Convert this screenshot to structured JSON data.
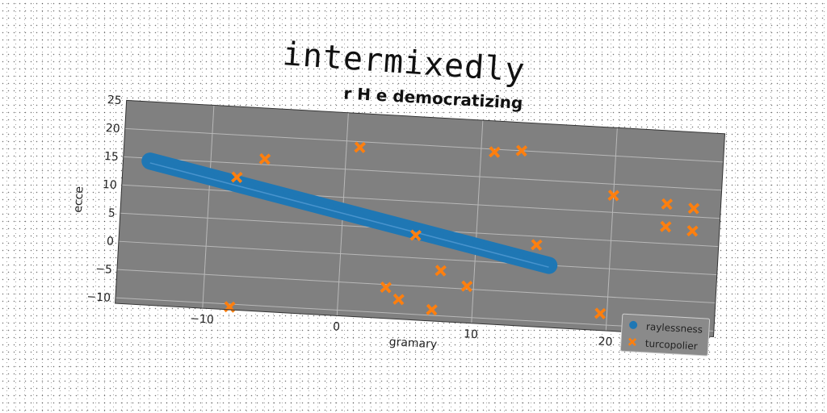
{
  "header": {
    "title": "intermixedly"
  },
  "chart_data": {
    "type": "scatter",
    "title": "r H e democratizing",
    "xlabel": "gramary",
    "ylabel": "ecce",
    "xlim": [
      -16.5,
      28
    ],
    "ylim": [
      -11,
      25
    ],
    "xticks": [
      -10,
      0,
      10,
      20
    ],
    "yticks": [
      -10,
      -5,
      0,
      5,
      10,
      15,
      20,
      25
    ],
    "grid": true,
    "legend_position": "bottom-right",
    "colors": {
      "plot_bg": "#808080",
      "raylessness": "#1f77b4",
      "turcopolier": "#ff7f0e"
    },
    "series": [
      {
        "name": "raylessness",
        "marker": "o",
        "band": {
          "x_start": -14.5,
          "y_start": 14.5,
          "x_end": 15.5,
          "y_end": 0,
          "thickness": 1.6
        }
      },
      {
        "name": "turcopolier",
        "marker": "X",
        "points": [
          [
            -8,
            12.5
          ],
          [
            -6,
            16
          ],
          [
            1,
            19
          ],
          [
            11,
            19.5
          ],
          [
            13,
            20
          ],
          [
            20,
            13
          ],
          [
            24,
            12
          ],
          [
            26,
            11.5
          ],
          [
            24,
            8
          ],
          [
            26,
            7.5
          ],
          [
            5.5,
            4
          ],
          [
            14.5,
            3.5
          ],
          [
            7.5,
            -2
          ],
          [
            9.5,
            -4.5
          ],
          [
            3.5,
            -5.5
          ],
          [
            4.5,
            -7.5
          ],
          [
            7,
            -9
          ],
          [
            19.5,
            -8
          ],
          [
            26.5,
            -11
          ],
          [
            -8,
            -10.5
          ]
        ]
      }
    ]
  }
}
